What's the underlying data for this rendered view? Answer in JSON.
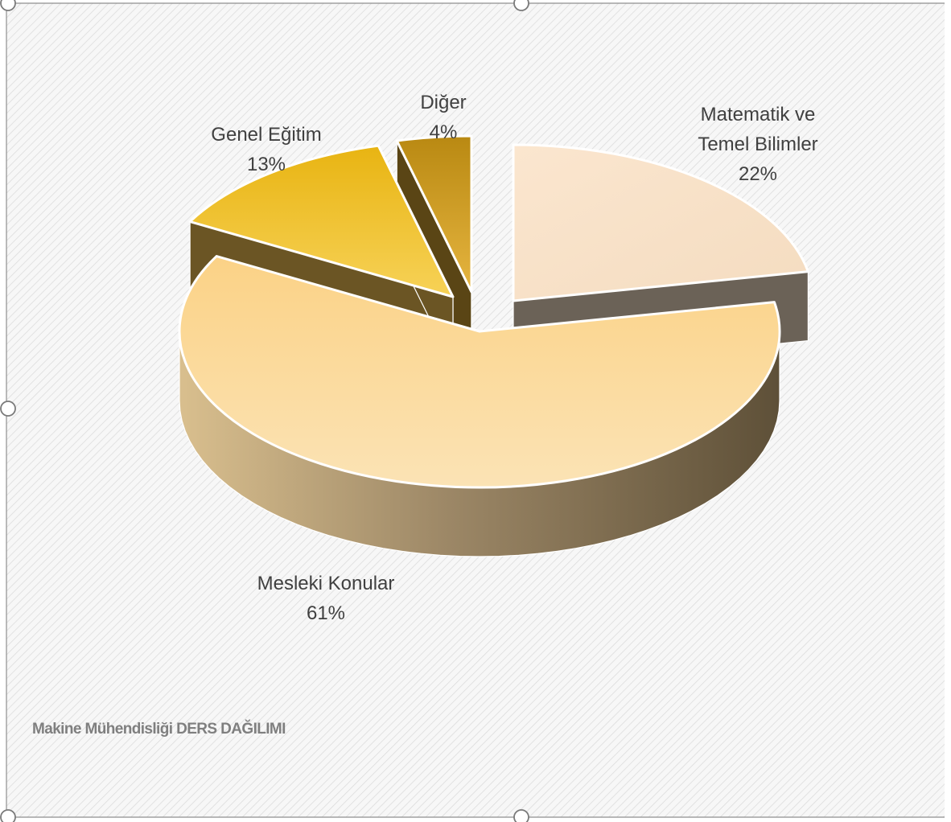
{
  "chart_data": {
    "type": "pie",
    "title": "Makine Mühendisliği DERS DAĞILIMI",
    "slices": [
      {
        "label_lines": [
          "Matematik ve",
          "Temel Bilimler"
        ],
        "percent_label": "22%",
        "value": 22,
        "color": "#f7e3c9",
        "side_color": "#6b6257"
      },
      {
        "label_lines": [
          "Mesleki Konular"
        ],
        "percent_label": "61%",
        "value": 61,
        "color": "#fbd894",
        "side_color": "#9c8766"
      },
      {
        "label_lines": [
          "Genel Eğitim"
        ],
        "percent_label": "13%",
        "value": 13,
        "color": "#f2c230",
        "side_color": "#6b5524"
      },
      {
        "label_lines": [
          "Diğer"
        ],
        "percent_label": "4%",
        "value": 4,
        "color": "#d9a41f",
        "side_color": "#5a4515"
      }
    ]
  }
}
